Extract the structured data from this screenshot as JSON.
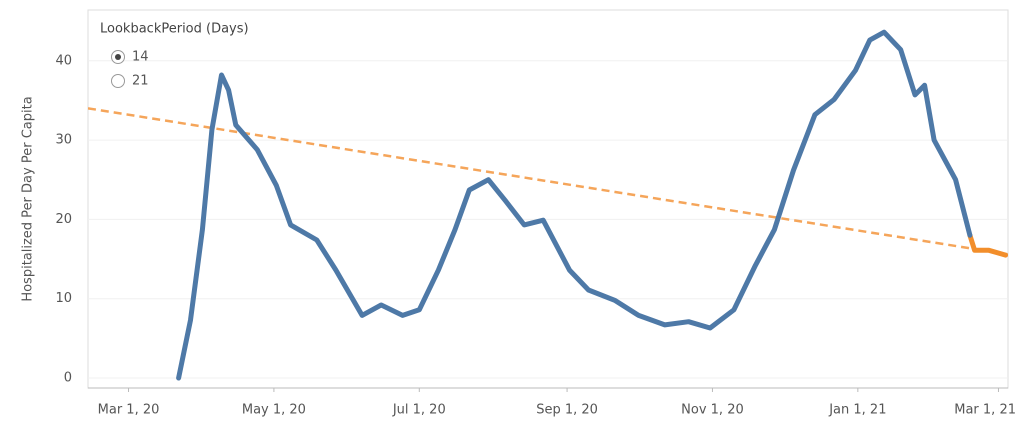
{
  "chart_data": {
    "type": "line",
    "y_label": "Hospitalized Per Day Per Capita",
    "xlim": [
      "2020-02-13",
      "2021-03-05"
    ],
    "xticks": [
      {
        "value": "2020-03-01",
        "label": "Mar 1, 20"
      },
      {
        "value": "2020-05-01",
        "label": "May 1, 20"
      },
      {
        "value": "2020-07-01",
        "label": "Jul 1, 20"
      },
      {
        "value": "2020-09-01",
        "label": "Sep 1, 20"
      },
      {
        "value": "2020-11-01",
        "label": "Nov 1, 20"
      },
      {
        "value": "2021-01-01",
        "label": "Jan 1, 21"
      },
      {
        "value": "2021-03-01",
        "label": "Mar 1, 21"
      }
    ],
    "ylim": [
      -1.26,
      46.4
    ],
    "yticks": [
      0,
      10,
      20,
      30,
      40
    ],
    "grid": true,
    "series": [
      {
        "color": "#4e79a7",
        "dashed": false,
        "width": 5,
        "x": [
          "2020-03-22",
          "2020-03-27",
          "2020-04-01",
          "2020-04-05",
          "2020-04-09",
          "2020-04-12",
          "2020-04-15",
          "2020-04-24",
          "2020-05-02",
          "2020-05-08",
          "2020-05-19",
          "2020-05-27",
          "2020-06-07",
          "2020-06-15",
          "2020-06-24",
          "2020-07-01",
          "2020-07-09",
          "2020-07-16",
          "2020-07-22",
          "2020-07-30",
          "2020-08-06",
          "2020-08-14",
          "2020-08-22",
          "2020-09-02",
          "2020-09-10",
          "2020-09-21",
          "2020-10-01",
          "2020-10-12",
          "2020-10-22",
          "2020-10-31",
          "2020-11-10",
          "2020-11-19",
          "2020-11-27",
          "2020-12-05",
          "2020-12-14",
          "2020-12-22",
          "2020-12-31",
          "2021-01-06",
          "2021-01-12",
          "2021-01-19",
          "2021-01-25",
          "2021-01-29",
          "2021-02-02",
          "2021-02-11",
          "2021-02-17"
        ],
        "values": [
          0,
          7.3,
          18.7,
          31.3,
          38.2,
          36.3,
          31.9,
          28.8,
          24.3,
          19.3,
          17.4,
          13.6,
          7.9,
          9.2,
          7.9,
          8.6,
          13.6,
          18.7,
          23.7,
          25.0,
          22.4,
          19.3,
          19.9,
          13.6,
          11.1,
          9.8,
          7.9,
          6.7,
          7.1,
          6.3,
          8.6,
          14.2,
          18.7,
          26.2,
          33.2,
          35.1,
          38.8,
          42.6,
          43.6,
          41.4,
          35.7,
          36.9,
          30.0,
          25.0,
          18.0
        ]
      },
      {
        "color": "#f28e2b",
        "dashed": false,
        "width": 5,
        "x": [
          "2021-02-17",
          "2021-02-19",
          "2021-02-25",
          "2021-03-04"
        ],
        "values": [
          18.0,
          16.1,
          16.1,
          15.5
        ]
      },
      {
        "color": "#f5a55a",
        "dashed": true,
        "width": 2.5,
        "x": [
          "2020-02-13",
          "2021-03-05"
        ],
        "values": [
          34.0,
          15.6
        ]
      }
    ],
    "parameter": {
      "title": "LookbackPeriod (Days)",
      "options": [
        14,
        21
      ],
      "selected": 14
    }
  }
}
